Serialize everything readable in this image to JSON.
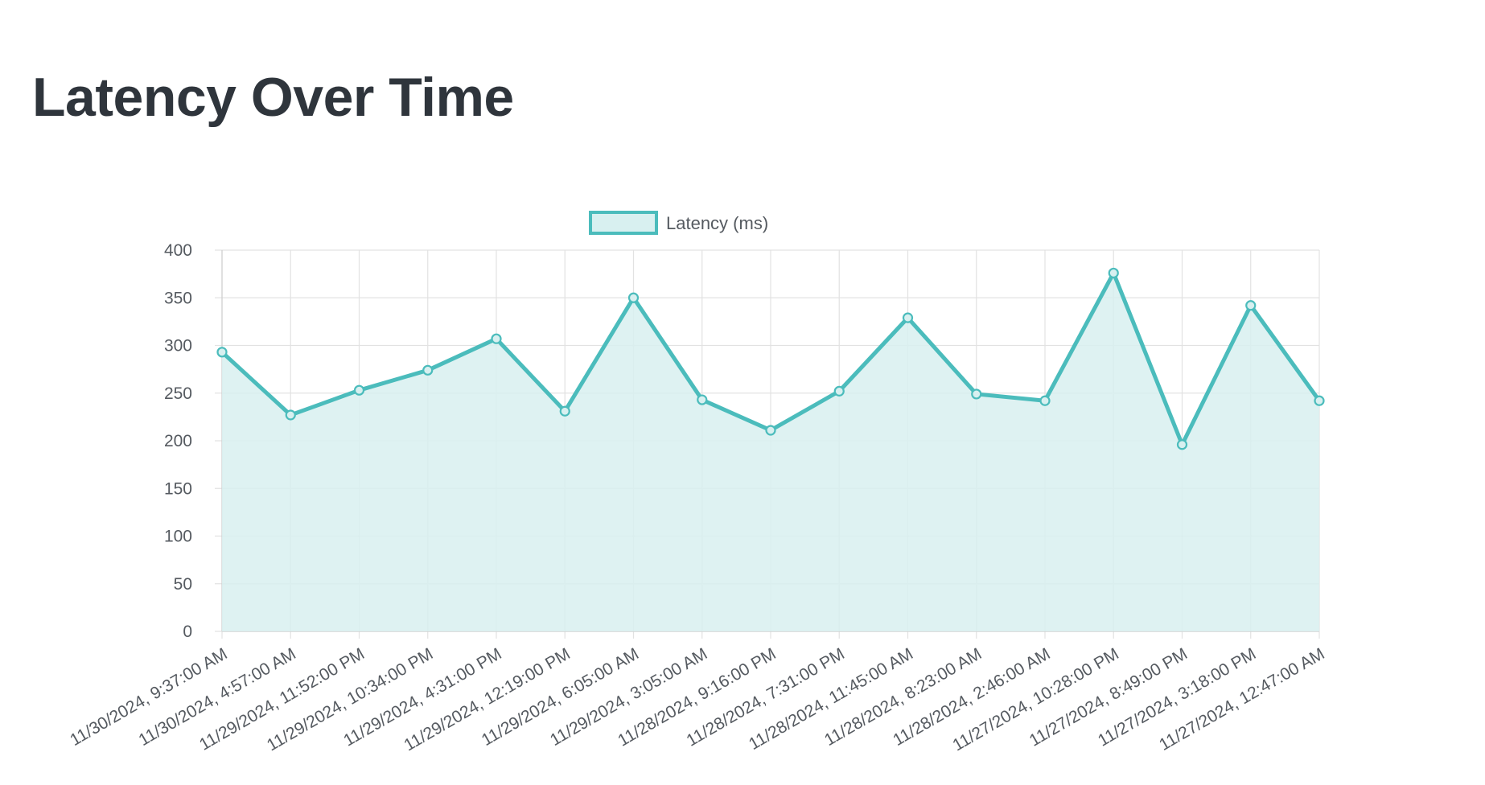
{
  "page": {
    "title": "Latency Over Time"
  },
  "chart_data": {
    "type": "line",
    "title": "",
    "xlabel": "",
    "ylabel": "",
    "categories": [
      "11/30/2024, 9:37:00 AM",
      "11/30/2024, 4:57:00 AM",
      "11/29/2024, 11:52:00 PM",
      "11/29/2024, 10:34:00 PM",
      "11/29/2024, 4:31:00 PM",
      "11/29/2024, 12:19:00 PM",
      "11/29/2024, 6:05:00 AM",
      "11/29/2024, 3:05:00 AM",
      "11/28/2024, 9:16:00 PM",
      "11/28/2024, 7:31:00 PM",
      "11/28/2024, 11:45:00 AM",
      "11/28/2024, 8:23:00 AM",
      "11/28/2024, 2:46:00 AM",
      "11/27/2024, 10:28:00 PM",
      "11/27/2024, 8:49:00 PM",
      "11/27/2024, 3:18:00 PM",
      "11/27/2024, 12:47:00 AM"
    ],
    "series": [
      {
        "name": "Latency (ms)",
        "values": [
          293,
          227,
          253,
          274,
          307,
          231,
          350,
          243,
          211,
          252,
          329,
          249,
          242,
          376,
          196,
          342,
          242
        ],
        "line_color": "#4bbcbc",
        "fill_color": "#d8f0f0"
      }
    ],
    "ylim": [
      0,
      400
    ],
    "y_ticks": [
      0,
      50,
      100,
      150,
      200,
      250,
      300,
      350,
      400
    ],
    "grid": true,
    "legend_position": "top-center",
    "filled": true,
    "x_tick_rotation": "diagonal"
  }
}
